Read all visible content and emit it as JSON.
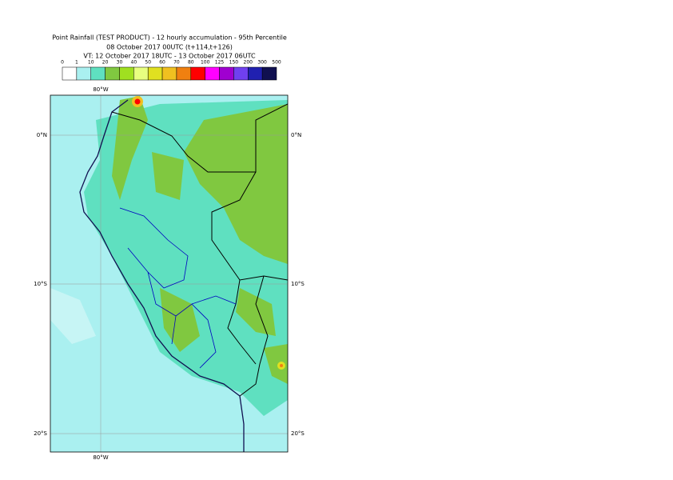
{
  "header": {
    "lines": [
      "Point Rainfall (TEST PRODUCT) - 12 hourly accumulation - 95th Percentile",
      "08 October 2017 00UTC (t+114,t+126)",
      "VT: 12 October 2017 18UTC - 13 October 2017 06UTC"
    ]
  },
  "legend": {
    "labels": [
      "0",
      "1",
      "10",
      "20",
      "30",
      "40",
      "50",
      "60",
      "70",
      "80",
      "100",
      "125",
      "150",
      "200",
      "300",
      "500"
    ],
    "colors": [
      "#ffffff",
      "#aaf0f0",
      "#5fe0c0",
      "#80c840",
      "#a0e020",
      "#e8ff80",
      "#e0e020",
      "#f0c020",
      "#f08010",
      "#ff0000",
      "#ff00ff",
      "#a000d0",
      "#7040f0",
      "#2020b0",
      "#101050"
    ]
  },
  "map": {
    "lon_labels": [
      "80°W"
    ],
    "lat_labels": [
      "0°N",
      "10°S",
      "20°S"
    ]
  }
}
